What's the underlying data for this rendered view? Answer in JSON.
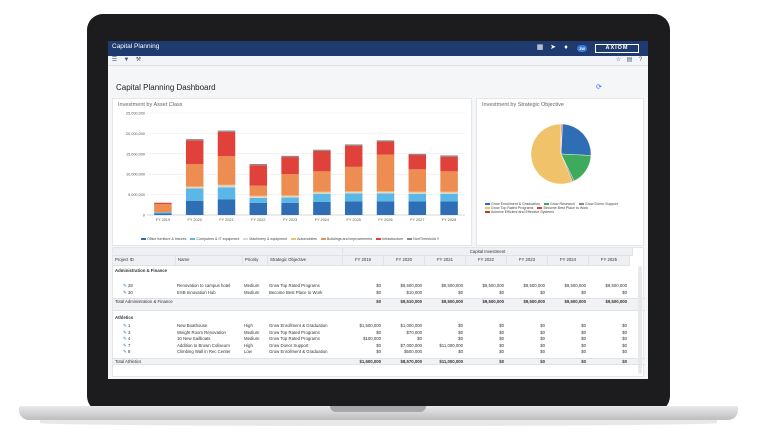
{
  "app": {
    "title": "Capital Planning",
    "brand": "AXIOM",
    "user_initials": "JW"
  },
  "titlebar_icons": [
    "grid-icon",
    "send-icon",
    "bell-icon"
  ],
  "toolbar_icons": [
    "menu-icon",
    "filter-icon",
    "wrench-icon",
    "star-icon",
    "document-icon",
    "help-icon"
  ],
  "dashboard": {
    "title": "Capital Planning Dashboard",
    "refresh_icon": "refresh-icon"
  },
  "bar_chart": {
    "chart_data": {
      "type": "bar",
      "stacked": true,
      "title": "Investment by Asset Class",
      "categories": [
        "FY 2019",
        "FY 2020",
        "FY 2021",
        "FY 2022",
        "FY 2023",
        "FY 2024",
        "FY 2025",
        "FY 2026",
        "FY 2027",
        "FY 2028"
      ],
      "y_ticks": [
        "0",
        "5,000,000",
        "10,000,000",
        "15,000,000",
        "20,000,000",
        "25,000,000"
      ],
      "ylim": [
        0,
        25000000
      ],
      "grid": true,
      "legend_position": "bottom",
      "series": [
        {
          "name": "Office furniture & fixtures",
          "color": "#2f6db5",
          "values": [
            400000,
            3500000,
            3800000,
            3000000,
            3000000,
            3200000,
            3300000,
            3300000,
            3300000,
            3300000
          ]
        },
        {
          "name": "Computers & IT equipment",
          "color": "#5bb8e6",
          "values": [
            300000,
            3000000,
            3000000,
            1200000,
            1300000,
            2000000,
            2000000,
            2000000,
            1900000,
            1900000
          ]
        },
        {
          "name": "Machinery & equipment",
          "color": "#d9d9d9",
          "values": [
            0,
            300000,
            400000,
            300000,
            300000,
            300000,
            300000,
            300000,
            300000,
            300000
          ]
        },
        {
          "name": "Automobiles",
          "color": "#f0c36a",
          "values": [
            0,
            200000,
            200000,
            200000,
            200000,
            200000,
            200000,
            200000,
            200000,
            200000
          ]
        },
        {
          "name": "Buildings and improvements",
          "color": "#ee8d52",
          "values": [
            2000000,
            5500000,
            7000000,
            2500000,
            5200000,
            5000000,
            6000000,
            9000000,
            5500000,
            5000000
          ]
        },
        {
          "name": "Infrastructure",
          "color": "#e0413b",
          "values": [
            300000,
            5800000,
            6000000,
            5000000,
            4200000,
            5000000,
            5200000,
            3200000,
            3500000,
            3600000
          ]
        },
        {
          "name": "NonThreshold Y",
          "color": "#8a8a8a",
          "values": [
            0,
            300000,
            300000,
            300000,
            300000,
            300000,
            300000,
            300000,
            300000,
            300000
          ]
        }
      ]
    }
  },
  "pie_chart": {
    "chart_data": {
      "type": "pie",
      "title": "Investment by Strategic Objective",
      "legend_position": "bottom",
      "slices": [
        {
          "name": "Grow Enrollment & Graduation",
          "color": "#2f6db5",
          "value": 25
        },
        {
          "name": "Grow Research",
          "color": "#3daa5c",
          "value": 17
        },
        {
          "name": "Grow Donor Support",
          "color": "#8a8a8a",
          "value": 1
        },
        {
          "name": "Grow Top Rated Programs",
          "color": "#f0c36a",
          "value": 56
        },
        {
          "name": "Become Best Place to Work",
          "color": "#e0413b",
          "value": 0.5
        },
        {
          "name": "Achieve Efficient and Effective Systems",
          "color": "#c0392b",
          "value": 0.5
        }
      ]
    }
  },
  "table": {
    "group_header": "Capital Investment",
    "columns": [
      "Project ID",
      "Name",
      "Priority",
      "Strategic Objective"
    ],
    "years": [
      "FY 2019",
      "FY 2020",
      "FY 2021",
      "FY 2022",
      "FY 2023",
      "FY 2024",
      "FY 2025"
    ],
    "groups": [
      {
        "label": "Administration & Finance",
        "rows": [
          {
            "id": "28",
            "name": "Renovation to campus hotel",
            "priority": "Medium",
            "objective": "Grow Top Rated Programs",
            "values": [
              "$0",
              "$9,500,000",
              "$9,500,000",
              "$9,500,000",
              "$9,500,000",
              "$9,500,000",
              "$9,500,000"
            ]
          },
          {
            "id": "30",
            "name": "ESB Innovation Hub",
            "priority": "Medium",
            "objective": "Become Best Place to Work",
            "values": [
              "$0",
              "$10,000",
              "$0",
              "$0",
              "$0",
              "$0",
              "$0"
            ]
          }
        ],
        "total_label": "Total Administration & Finance",
        "totals": [
          "$0",
          "$9,510,000",
          "$9,500,000",
          "$9,500,000",
          "$9,500,000",
          "$9,500,000",
          "$9,500,000"
        ]
      },
      {
        "label": "Athletics",
        "rows": [
          {
            "id": "1",
            "name": "New Boathouse",
            "priority": "High",
            "objective": "Grow Enrollment & Graduation",
            "values": [
              "$1,500,000",
              "$1,000,000",
              "$0",
              "$0",
              "$0",
              "$0",
              "$0"
            ]
          },
          {
            "id": "3",
            "name": "Weight Room Renovation",
            "priority": "Medium",
            "objective": "Grow Top Rated Programs",
            "values": [
              "$0",
              "$70,000",
              "$0",
              "$0",
              "$0",
              "$0",
              "$0"
            ]
          },
          {
            "id": "4",
            "name": "10 New Sailboats",
            "priority": "Medium",
            "objective": "Grow Top Rated Programs",
            "values": [
              "$100,000",
              "$0",
              "$0",
              "$0",
              "$0",
              "$0",
              "$0"
            ]
          },
          {
            "id": "7",
            "name": "Addition to Brown Coliseum",
            "priority": "High",
            "objective": "Grow Donor Support",
            "values": [
              "$0",
              "$7,000,000",
              "$11,000,000",
              "$0",
              "$0",
              "$0",
              "$0"
            ]
          },
          {
            "id": "8",
            "name": "Climbing Wall in Rec Center",
            "priority": "Low",
            "objective": "Grow Enrollment & Graduation",
            "values": [
              "$0",
              "$500,000",
              "$0",
              "$0",
              "$0",
              "$0",
              "$0"
            ]
          }
        ],
        "total_label": "Total Athletics",
        "totals": [
          "$1,600,000",
          "$8,570,000",
          "$11,000,000",
          "$0",
          "$0",
          "$0",
          "$0"
        ]
      }
    ]
  }
}
